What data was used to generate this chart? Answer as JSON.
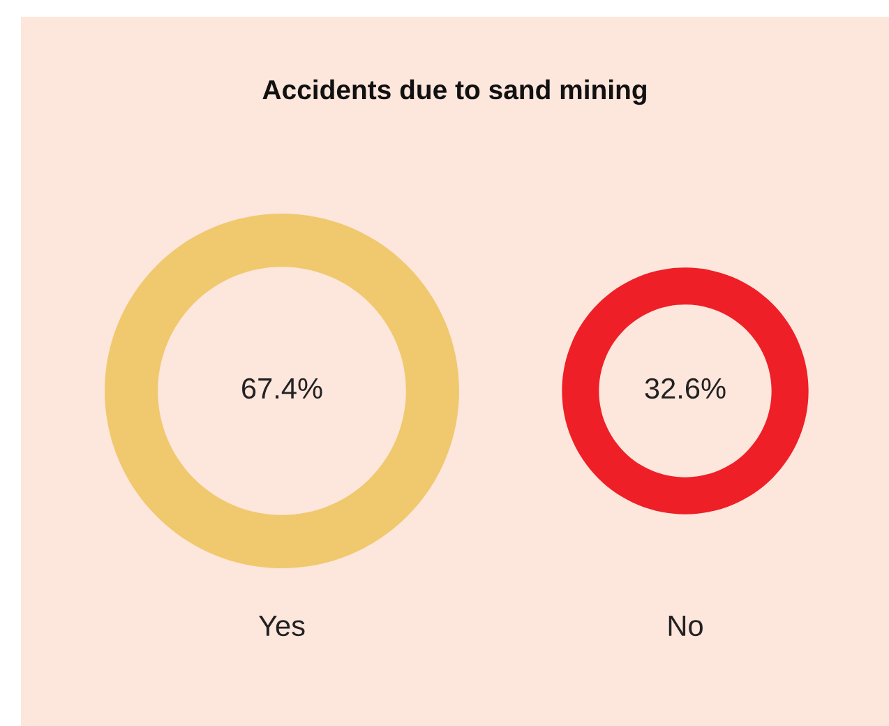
{
  "chart_data": {
    "type": "other",
    "title": "Accidents due to sand mining",
    "categories": [
      "Yes",
      "No"
    ],
    "values": [
      67.4,
      32.6
    ],
    "colors": [
      "#f0c96e",
      "#ee1f26"
    ],
    "value_labels": [
      "67.4%",
      "32.6%"
    ]
  }
}
